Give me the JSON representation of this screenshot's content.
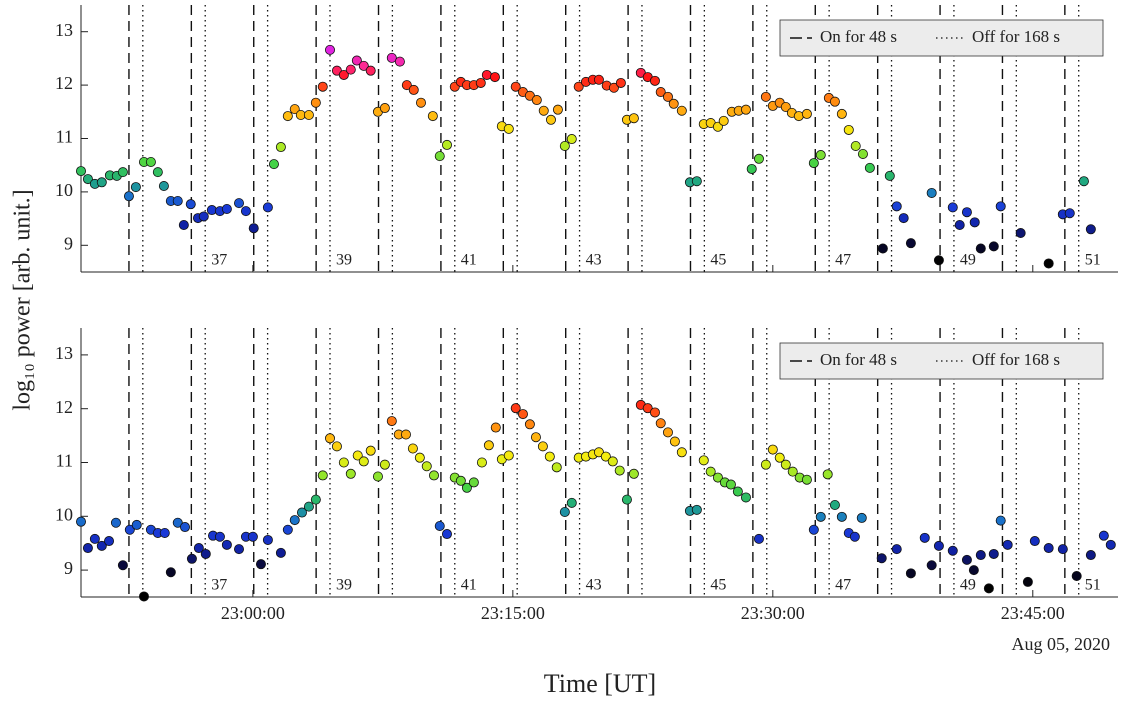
{
  "ylabel": "log₁₀ power [arb. unit.]",
  "legend": [
    "On for 48 s",
    "Off for 168 s"
  ],
  "on_lines": [
    "22:52:51",
    "22:56:27",
    "23:00:03",
    "23:03:39",
    "23:07:15",
    "23:10:51",
    "23:14:27",
    "23:18:03",
    "23:21:39",
    "23:25:15",
    "23:28:51",
    "23:32:27",
    "23:36:03",
    "23:39:39",
    "23:43:15",
    "23:46:51"
  ],
  "off_lines": [
    "22:53:39",
    "22:57:15",
    "23:00:51",
    "23:04:27",
    "23:08:03",
    "23:11:39",
    "23:15:15",
    "23:18:51",
    "23:22:27",
    "23:26:03",
    "23:29:39",
    "23:33:15",
    "23:36:51",
    "23:40:27",
    "23:44:03",
    "23:47:39"
  ],
  "cycle_labels": [
    "37",
    "39",
    "41",
    "43",
    "45",
    "47",
    "49",
    "51"
  ],
  "colormap": [
    [
      8.7,
      "#000000"
    ],
    [
      9.1,
      "#0a0a3c"
    ],
    [
      9.35,
      "#1020a0"
    ],
    [
      9.7,
      "#1a3ad8"
    ],
    [
      9.95,
      "#1a78c8"
    ],
    [
      10.2,
      "#20a880"
    ],
    [
      10.5,
      "#3cd048"
    ],
    [
      10.8,
      "#a0e828"
    ],
    [
      11.1,
      "#f4ee10"
    ],
    [
      11.4,
      "#ffc010"
    ],
    [
      11.7,
      "#ff8a10"
    ],
    [
      11.95,
      "#ff4a18"
    ],
    [
      12.15,
      "#ff1414"
    ],
    [
      12.35,
      "#ff2a90"
    ],
    [
      12.6,
      "#e024e0"
    ]
  ],
  "chart_data": [
    {
      "type": "scatter",
      "xlim": [
        "22:50:05",
        "23:49:55"
      ],
      "ylim": [
        8.5,
        13.5
      ],
      "yticks": [
        9,
        10,
        11,
        12,
        13
      ],
      "x": [
        "22:50:05",
        "22:50:29",
        "22:50:53",
        "22:51:17",
        "22:51:45",
        "22:52:09",
        "22:52:30",
        "22:52:51",
        "22:53:15",
        "22:53:43",
        "22:54:07",
        "22:54:31",
        "22:54:52",
        "22:55:16",
        "22:55:40",
        "22:56:01",
        "22:56:25",
        "22:56:50",
        "22:57:10",
        "22:57:38",
        "22:58:06",
        "22:58:30",
        "22:59:12",
        "22:59:36",
        "23:00:03",
        "23:00:52",
        "23:01:13",
        "23:01:37",
        "23:02:01",
        "23:02:25",
        "23:02:46",
        "23:03:14",
        "23:03:38",
        "23:04:02",
        "23:04:27",
        "23:04:51",
        "23:05:15",
        "23:05:39",
        "23:06:00",
        "23:06:24",
        "23:06:48",
        "23:07:13",
        "23:07:37",
        "23:08:01",
        "23:08:29",
        "23:08:53",
        "23:09:17",
        "23:09:42",
        "23:10:23",
        "23:10:47",
        "23:11:12",
        "23:11:39",
        "23:12:00",
        "23:12:21",
        "23:12:45",
        "23:13:09",
        "23:13:30",
        "23:13:58",
        "23:14:22",
        "23:14:46",
        "23:15:10",
        "23:15:35",
        "23:15:59",
        "23:16:23",
        "23:16:47",
        "23:17:12",
        "23:17:36",
        "23:18:00",
        "23:18:24",
        "23:18:48",
        "23:19:13",
        "23:19:37",
        "23:19:58",
        "23:20:25",
        "23:20:50",
        "23:21:14",
        "23:21:35",
        "23:21:59",
        "23:22:23",
        "23:22:47",
        "23:23:12",
        "23:23:32",
        "23:23:57",
        "23:24:17",
        "23:24:45",
        "23:25:13",
        "23:25:37",
        "23:26:01",
        "23:26:25",
        "23:26:50",
        "23:27:10",
        "23:27:38",
        "23:28:02",
        "23:28:27",
        "23:28:47",
        "23:29:12",
        "23:29:36",
        "23:30:00",
        "23:30:24",
        "23:30:45",
        "23:31:06",
        "23:31:30",
        "23:31:58",
        "23:32:22",
        "23:32:46",
        "23:33:14",
        "23:33:35",
        "23:33:59",
        "23:34:23",
        "23:34:47",
        "23:35:12",
        "23:35:36",
        "23:36:21",
        "23:36:45",
        "23:37:09",
        "23:37:33",
        "23:37:58",
        "23:39:10",
        "23:39:35",
        "23:40:23",
        "23:40:47",
        "23:41:12",
        "23:41:39",
        "23:42:00",
        "23:42:45",
        "23:43:09",
        "23:44:18",
        "23:45:55",
        "23:46:44",
        "23:47:08",
        "23:47:57",
        "23:48:21"
      ],
      "values": [
        10.39,
        10.24,
        10.15,
        10.18,
        10.31,
        10.3,
        10.37,
        9.92,
        10.09,
        10.56,
        10.56,
        10.37,
        10.11,
        9.83,
        9.83,
        9.38,
        9.77,
        9.51,
        9.54,
        9.66,
        9.64,
        9.68,
        9.79,
        9.64,
        9.32,
        9.71,
        10.52,
        10.84,
        11.42,
        11.55,
        11.44,
        11.44,
        11.67,
        11.97,
        12.66,
        12.27,
        12.19,
        12.29,
        12.46,
        12.36,
        12.27,
        11.5,
        11.57,
        12.51,
        12.44,
        12.0,
        11.91,
        11.67,
        11.42,
        10.67,
        10.88,
        11.97,
        12.06,
        12.0,
        12.0,
        12.04,
        12.19,
        12.15,
        11.23,
        11.18,
        11.97,
        11.87,
        11.8,
        11.72,
        11.52,
        11.35,
        11.54,
        10.86,
        10.99,
        11.97,
        12.06,
        12.1,
        12.1,
        11.99,
        11.95,
        12.04,
        11.35,
        11.38,
        12.23,
        12.15,
        12.08,
        11.87,
        11.78,
        11.65,
        11.52,
        10.18,
        10.2,
        11.27,
        11.29,
        11.22,
        11.33,
        11.5,
        11.52,
        11.54,
        10.43,
        10.62,
        11.78,
        11.61,
        11.67,
        11.59,
        11.48,
        11.42,
        11.46,
        10.54,
        10.69,
        11.76,
        11.69,
        11.46,
        11.16,
        10.86,
        10.71,
        10.45,
        8.94,
        10.3,
        9.73,
        9.51,
        9.04,
        9.98,
        8.72,
        9.71,
        9.38,
        9.62,
        9.43,
        8.94,
        8.98,
        9.73,
        9.23,
        8.66,
        9.58,
        9.6,
        10.2,
        9.3
      ]
    },
    {
      "type": "scatter",
      "xlabel": "Time [UT]",
      "date_label": "Aug 05, 2020",
      "xlim": [
        "22:50:05",
        "23:49:55"
      ],
      "xticks": [
        "23:00:00",
        "23:15:00",
        "23:30:00",
        "23:45:00"
      ],
      "ylim": [
        8.5,
        13.5
      ],
      "yticks": [
        9,
        10,
        11,
        12,
        13
      ],
      "x": [
        "22:50:05",
        "22:50:29",
        "22:50:53",
        "22:51:17",
        "22:51:42",
        "22:52:06",
        "22:52:30",
        "22:52:54",
        "22:53:18",
        "22:53:43",
        "22:54:07",
        "22:54:31",
        "22:54:55",
        "22:55:16",
        "22:55:40",
        "22:56:05",
        "22:56:29",
        "22:56:53",
        "22:57:17",
        "22:57:42",
        "22:58:06",
        "22:58:30",
        "22:59:12",
        "22:59:36",
        "23:00:00",
        "23:00:28",
        "23:00:52",
        "23:01:37",
        "23:02:01",
        "23:02:25",
        "23:02:50",
        "23:03:14",
        "23:03:38",
        "23:04:02",
        "23:04:27",
        "23:04:51",
        "23:05:15",
        "23:05:39",
        "23:06:03",
        "23:06:24",
        "23:06:48",
        "23:07:13",
        "23:07:37",
        "23:08:01",
        "23:08:25",
        "23:08:50",
        "23:09:14",
        "23:09:38",
        "23:10:02",
        "23:10:27",
        "23:10:47",
        "23:11:12",
        "23:11:39",
        "23:12:00",
        "23:12:21",
        "23:12:45",
        "23:13:13",
        "23:13:37",
        "23:14:01",
        "23:14:22",
        "23:14:46",
        "23:15:10",
        "23:15:35",
        "23:15:59",
        "23:16:20",
        "23:16:44",
        "23:17:08",
        "23:17:32",
        "23:18:00",
        "23:18:24",
        "23:18:48",
        "23:19:13",
        "23:19:37",
        "23:19:58",
        "23:20:22",
        "23:20:46",
        "23:21:10",
        "23:21:35",
        "23:21:59",
        "23:22:23",
        "23:22:47",
        "23:23:12",
        "23:23:32",
        "23:23:57",
        "23:24:21",
        "23:24:45",
        "23:25:13",
        "23:25:37",
        "23:26:01",
        "23:26:25",
        "23:26:50",
        "23:27:14",
        "23:27:35",
        "23:27:59",
        "23:28:27",
        "23:29:12",
        "23:29:36",
        "23:30:00",
        "23:30:24",
        "23:30:45",
        "23:31:09",
        "23:31:33",
        "23:31:58",
        "23:32:22",
        "23:32:46",
        "23:33:10",
        "23:33:35",
        "23:33:59",
        "23:34:23",
        "23:34:44",
        "23:35:08",
        "23:36:17",
        "23:37:09",
        "23:37:58",
        "23:38:46",
        "23:39:10",
        "23:39:35",
        "23:40:23",
        "23:41:12",
        "23:41:36",
        "23:42:00",
        "23:42:28",
        "23:42:45",
        "23:43:09",
        "23:43:33",
        "23:44:43",
        "23:45:07",
        "23:45:55",
        "23:46:44",
        "23:47:32",
        "23:48:21",
        "23:49:06",
        "23:49:30"
      ],
      "values": [
        9.9,
        9.41,
        9.58,
        9.45,
        9.54,
        9.88,
        9.09,
        9.75,
        9.84,
        8.51,
        9.75,
        9.69,
        9.69,
        8.96,
        9.88,
        9.8,
        9.21,
        9.41,
        9.3,
        9.64,
        9.62,
        9.47,
        9.39,
        9.62,
        9.62,
        9.11,
        9.56,
        9.32,
        9.75,
        9.93,
        10.07,
        10.18,
        10.31,
        10.76,
        11.45,
        11.3,
        11.0,
        10.79,
        11.13,
        11.02,
        11.22,
        10.74,
        10.96,
        11.77,
        11.52,
        11.52,
        11.26,
        11.09,
        10.93,
        10.76,
        9.82,
        9.67,
        10.72,
        10.66,
        10.53,
        10.63,
        11.0,
        11.32,
        11.65,
        11.06,
        11.13,
        12.01,
        11.9,
        11.71,
        11.47,
        11.3,
        11.11,
        10.91,
        10.08,
        10.25,
        11.09,
        11.11,
        11.15,
        11.19,
        11.11,
        11.02,
        10.85,
        10.31,
        10.79,
        12.07,
        12.01,
        11.93,
        11.73,
        11.56,
        11.39,
        11.19,
        10.1,
        10.12,
        11.04,
        10.83,
        10.72,
        10.63,
        10.59,
        10.46,
        10.35,
        9.58,
        10.96,
        11.24,
        11.09,
        10.96,
        10.83,
        10.72,
        10.68,
        9.75,
        9.99,
        10.78,
        10.21,
        9.99,
        9.69,
        9.62,
        9.97,
        9.22,
        9.39,
        8.94,
        9.6,
        9.09,
        9.45,
        9.36,
        9.19,
        9.0,
        9.28,
        8.66,
        9.3,
        9.92,
        9.47,
        8.78,
        9.54,
        9.41,
        9.39,
        8.89,
        9.28,
        9.64,
        9.47
      ]
    }
  ]
}
